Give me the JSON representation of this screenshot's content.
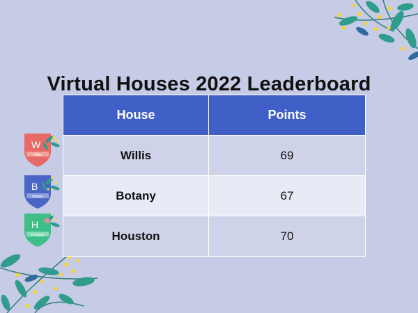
{
  "title": "Virtual Houses 2022 Leaderboard",
  "table": {
    "headers": [
      "House",
      "Points"
    ],
    "rows": [
      {
        "house": "Willis",
        "points": "69"
      },
      {
        "house": "Botany",
        "points": "67"
      },
      {
        "house": "Houston",
        "points": "70"
      }
    ]
  },
  "crests": [
    {
      "letter": "W",
      "name": "Willis",
      "color": "#e86a66",
      "ribbon": "#f2a19b"
    },
    {
      "letter": "B",
      "name": "Botany",
      "color": "#4a66c4",
      "ribbon": "#8fa0dd"
    },
    {
      "letter": "H",
      "name": "Houston",
      "color": "#3fbf88",
      "ribbon": "#86dbb4"
    }
  ],
  "colors": {
    "background": "#c6cbe6",
    "header": "#4060c8",
    "row_odd": "#cfd3ea",
    "row_even": "#e8eaf5"
  }
}
